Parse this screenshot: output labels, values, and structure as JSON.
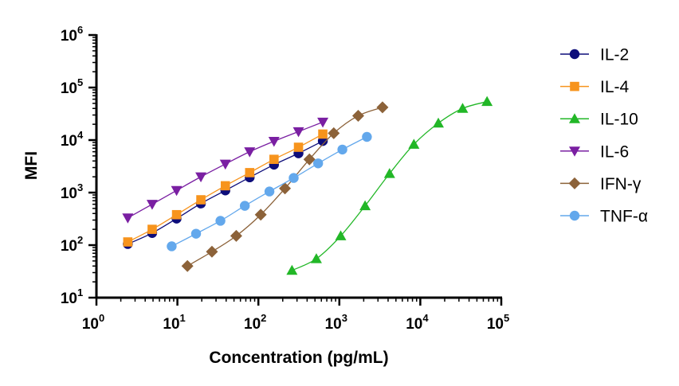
{
  "chart_data": {
    "type": "line",
    "x_scale": "log",
    "y_scale": "log",
    "xlabel": "Concentration (pg/mL)",
    "ylabel": "MFI",
    "xlim": [
      1,
      100000
    ],
    "ylim": [
      10,
      1000000
    ],
    "x_ticks": [
      {
        "base": "10",
        "exp": "0"
      },
      {
        "base": "10",
        "exp": "1"
      },
      {
        "base": "10",
        "exp": "2"
      },
      {
        "base": "10",
        "exp": "3"
      },
      {
        "base": "10",
        "exp": "4"
      },
      {
        "base": "10",
        "exp": "5"
      }
    ],
    "y_ticks": [
      {
        "base": "10",
        "exp": "1"
      },
      {
        "base": "10",
        "exp": "2"
      },
      {
        "base": "10",
        "exp": "3"
      },
      {
        "base": "10",
        "exp": "4"
      },
      {
        "base": "10",
        "exp": "5"
      },
      {
        "base": "10",
        "exp": "6"
      }
    ],
    "grid": false,
    "legend_position": "right",
    "series": [
      {
        "name": "IL-2",
        "marker": "circle",
        "color": "#0d0d7a",
        "x": [
          2.44,
          4.88,
          9.77,
          19.5,
          39.1,
          78.1,
          156,
          313,
          625
        ],
        "y": [
          105,
          170,
          320,
          620,
          1100,
          1950,
          3400,
          5600,
          9600
        ]
      },
      {
        "name": "IL-4",
        "marker": "square",
        "color": "#f7941d",
        "x": [
          2.44,
          4.88,
          9.77,
          19.5,
          39.1,
          78.1,
          156,
          313,
          625
        ],
        "y": [
          115,
          200,
          380,
          730,
          1350,
          2400,
          4300,
          7300,
          13000
        ]
      },
      {
        "name": "IL-10",
        "marker": "triangle-up",
        "color": "#22b727",
        "x": [
          260,
          520,
          1040,
          2080,
          4170,
          8330,
          16700,
          33300,
          66700
        ],
        "y": [
          33,
          55,
          150,
          560,
          2300,
          8300,
          21000,
          40000,
          54000
        ]
      },
      {
        "name": "IL-6",
        "marker": "triangle-down",
        "color": "#7a1fa2",
        "x": [
          2.44,
          4.88,
          9.77,
          19.5,
          39.1,
          78.1,
          156,
          313,
          625
        ],
        "y": [
          330,
          600,
          1100,
          2000,
          3500,
          6000,
          9500,
          14500,
          22000
        ]
      },
      {
        "name": "IFN-γ",
        "marker": "diamond",
        "color": "#8c6239",
        "x": [
          13.3,
          26.7,
          53.3,
          107,
          213,
          427,
          853,
          1710,
          3410
        ],
        "y": [
          40,
          75,
          150,
          380,
          1200,
          4300,
          13500,
          29000,
          42000
        ]
      },
      {
        "name": "TNF-α",
        "marker": "circle",
        "color": "#63a8ec",
        "x": [
          8.5,
          17,
          34,
          68,
          137,
          273,
          547,
          1090,
          2190
        ],
        "y": [
          95,
          165,
          290,
          560,
          1050,
          1900,
          3600,
          6600,
          11500
        ]
      }
    ]
  }
}
